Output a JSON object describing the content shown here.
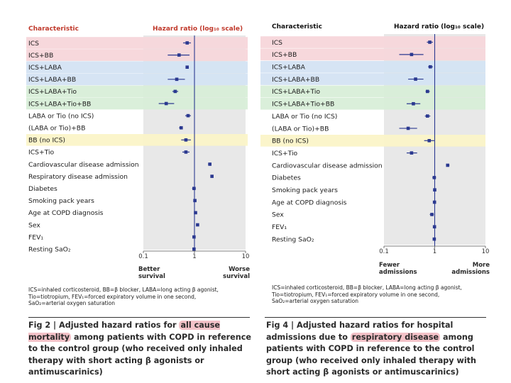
{
  "colors": {
    "marker": "#2b3990",
    "band_pink": "#f6d6da",
    "band_blue": "#d4e3f3",
    "band_green": "#d8eed8",
    "band_yellow": "#fbf5c8",
    "plot_bg": "#e8e8e8",
    "header_red": "#c0392b",
    "caption_highlight": "#f3c2c8"
  },
  "chart_data": [
    {
      "type": "forest",
      "title": "Adjusted hazard ratios for all cause mortality among patients with COPD",
      "column_headers": {
        "characteristic": "Characteristic",
        "hazard_ratio": "Hazard ratio (log₁₀ scale)"
      },
      "xscale": "log10",
      "xlim": [
        0.1,
        10
      ],
      "xticks": [
        "0.1",
        "1",
        "10"
      ],
      "left_axis_note": "Better survival",
      "right_axis_note": "Worse survival",
      "rows": [
        {
          "label": "ICS",
          "band": "pink",
          "hr": 0.72,
          "lo": 0.6,
          "hi": 0.85
        },
        {
          "label": "ICS+BB",
          "band": "pink",
          "hr": 0.5,
          "lo": 0.3,
          "hi": 0.8
        },
        {
          "label": "ICS+LABA",
          "band": "blue",
          "hr": 0.72,
          "lo": 0.68,
          "hi": 0.76
        },
        {
          "label": "ICS+LABA+BB",
          "band": "blue",
          "hr": 0.45,
          "lo": 0.3,
          "hi": 0.65
        },
        {
          "label": "ICS+LABA+Tio",
          "band": "green",
          "hr": 0.42,
          "lo": 0.37,
          "hi": 0.48
        },
        {
          "label": "ICS+LABA+Tio+BB",
          "band": "green",
          "hr": 0.28,
          "lo": 0.2,
          "hi": 0.4
        },
        {
          "label": "LABA or Tio (no ICS)",
          "band": null,
          "hr": 0.75,
          "lo": 0.66,
          "hi": 0.85
        },
        {
          "label": "(LABA or Tio)+BB",
          "band": null,
          "hr": 0.55,
          "lo": 0.5,
          "hi": 0.58
        },
        {
          "label": "BB (no ICS)",
          "band": "yellow",
          "hr": 0.68,
          "lo": 0.55,
          "hi": 0.85
        },
        {
          "label": "ICS+Tio",
          "band": null,
          "hr": 0.68,
          "lo": 0.58,
          "hi": 0.8
        },
        {
          "label": "Cardiovascular disease admission",
          "band": null,
          "hr": 2.0,
          "lo": 1.85,
          "hi": 2.15
        },
        {
          "label": "Respiratory disease admission",
          "band": null,
          "hr": 2.2,
          "lo": 2.1,
          "hi": 2.3
        },
        {
          "label": "Diabetes",
          "band": null,
          "hr": 0.98,
          "lo": 0.9,
          "hi": 1.06
        },
        {
          "label": "Smoking pack years",
          "band": null,
          "hr": 1.02,
          "lo": 1.0,
          "hi": 1.04
        },
        {
          "label": "Age at COPD diagnosis",
          "band": null,
          "hr": 1.05,
          "lo": 1.03,
          "hi": 1.07
        },
        {
          "label": "Sex",
          "band": null,
          "hr": 1.15,
          "lo": 1.08,
          "hi": 1.22
        },
        {
          "label": "FEV₁",
          "band": null,
          "hr": 0.98,
          "lo": 0.97,
          "hi": 0.99
        },
        {
          "label": "Resting SaO₂",
          "band": null,
          "hr": 0.98,
          "lo": 0.97,
          "hi": 0.99
        }
      ]
    },
    {
      "type": "forest",
      "title": "Adjusted hazard ratios for hospital admissions due to respiratory disease among patients with COPD",
      "column_headers": {
        "characteristic": "Characteristic",
        "hazard_ratio": "Hazard ratio (log₁₀ scale)"
      },
      "xscale": "log10",
      "xlim": [
        0.1,
        10
      ],
      "xticks": [
        "0.1",
        "1",
        "10"
      ],
      "left_axis_note": "Fewer admissions",
      "right_axis_note": "More admissions",
      "rows": [
        {
          "label": "ICS",
          "band": "pink",
          "hr": 0.8,
          "lo": 0.7,
          "hi": 0.92
        },
        {
          "label": "ICS+BB",
          "band": "pink",
          "hr": 0.35,
          "lo": 0.2,
          "hi": 0.6
        },
        {
          "label": "ICS+LABA",
          "band": "blue",
          "hr": 0.82,
          "lo": 0.74,
          "hi": 0.92
        },
        {
          "label": "ICS+LABA+BB",
          "band": "blue",
          "hr": 0.42,
          "lo": 0.3,
          "hi": 0.6
        },
        {
          "label": "ICS+LABA+Tio",
          "band": "green",
          "hr": 0.72,
          "lo": 0.66,
          "hi": 0.8
        },
        {
          "label": "ICS+LABA+Tio+BB",
          "band": "green",
          "hr": 0.38,
          "lo": 0.28,
          "hi": 0.52
        },
        {
          "label": "LABA or Tio (no ICS)",
          "band": null,
          "hr": 0.72,
          "lo": 0.64,
          "hi": 0.82
        },
        {
          "label": "(LABA or Tio)+BB",
          "band": null,
          "hr": 0.3,
          "lo": 0.2,
          "hi": 0.45
        },
        {
          "label": "BB (no ICS)",
          "band": "yellow",
          "hr": 0.78,
          "lo": 0.62,
          "hi": 0.98
        },
        {
          "label": "ICS+Tio",
          "band": null,
          "hr": 0.35,
          "lo": 0.28,
          "hi": 0.45
        },
        {
          "label": "Cardiovascular disease admission",
          "band": null,
          "hr": 1.8,
          "lo": 1.7,
          "hi": 1.95
        },
        {
          "label": "Diabetes",
          "band": null,
          "hr": 0.98,
          "lo": 0.9,
          "hi": 1.06
        },
        {
          "label": "Smoking pack years",
          "band": null,
          "hr": 1.0,
          "lo": 0.99,
          "hi": 1.01
        },
        {
          "label": "Age at COPD diagnosis",
          "band": null,
          "hr": 0.99,
          "lo": 0.98,
          "hi": 1.0
        },
        {
          "label": "Sex",
          "band": null,
          "hr": 0.88,
          "lo": 0.8,
          "hi": 0.96
        },
        {
          "label": "FEV₁",
          "band": null,
          "hr": 0.99,
          "lo": 0.98,
          "hi": 1.0
        },
        {
          "label": "Resting SaO₂",
          "band": null,
          "hr": 0.98,
          "lo": 0.97,
          "hi": 0.99
        }
      ]
    }
  ],
  "footnotes": {
    "left": [
      "ICS=inhaled corticosteroid, BB=β blocker, LABA=long acting β agonist,",
      "Tio=tiotropium, FEV₁=forced expiratory volume in one second,",
      "SaO₂=arterial oxygen saturation"
    ],
    "right": [
      "ICS=inhaled corticosteroid, BB=β blocker, LABA=long acting β agonist,",
      "Tio=tiotropium, FEV₁=forced expiratory volume in one second,",
      "SaO₂=arterial oxygen saturation"
    ]
  },
  "captions": {
    "left": {
      "prefix": "Fig 2 | Adjusted hazard ratios for ",
      "highlight": "all cause mortality",
      "suffix": " among patients with COPD in reference to the control group (who received only inhaled therapy with short acting β agonists or antimuscarinics)"
    },
    "right": {
      "prefix": "Fig 4 | Adjusted hazard ratios for hospital admissions due to ",
      "highlight": "respiratory disease",
      "suffix": " among patients with COPD in reference to the control group (who received only inhaled therapy with short acting β agonists or antimuscarinics)"
    }
  }
}
